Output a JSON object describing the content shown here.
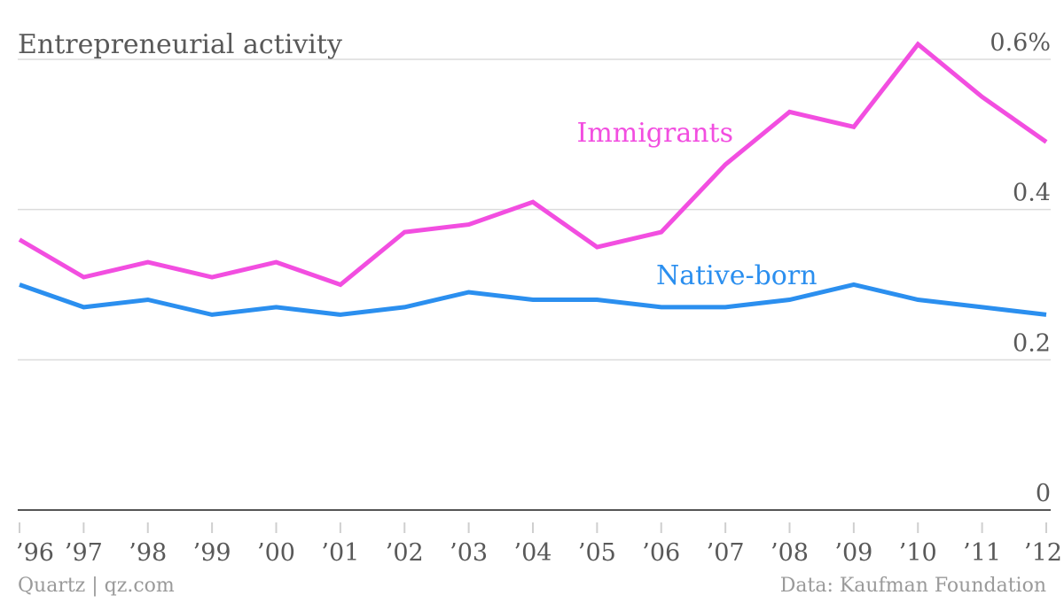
{
  "chart_data": {
    "type": "line",
    "title": "Entrepreneurial activity",
    "x": [
      "’96",
      "’97",
      "’98",
      "’99",
      "’00",
      "’01",
      "’02",
      "’03",
      "’04",
      "’05",
      "’06",
      "’07",
      "’08",
      "’09",
      "’10",
      "’11",
      "’12"
    ],
    "ylim": [
      0,
      0.6
    ],
    "yticks": [
      0,
      0.2,
      0.4,
      0.6
    ],
    "ytick_labels": [
      "0",
      "0.2",
      "0.4",
      "0.6%"
    ],
    "grid": true,
    "series": [
      {
        "name": "Immigrants",
        "color": "#f24ee0",
        "values": [
          0.36,
          0.31,
          0.33,
          0.31,
          0.33,
          0.3,
          0.37,
          0.38,
          0.41,
          0.35,
          0.37,
          0.46,
          0.53,
          0.51,
          0.62,
          0.55,
          0.49
        ]
      },
      {
        "name": "Native-born",
        "color": "#2b8fef",
        "values": [
          0.3,
          0.27,
          0.28,
          0.26,
          0.27,
          0.26,
          0.27,
          0.29,
          0.28,
          0.28,
          0.27,
          0.27,
          0.28,
          0.3,
          0.28,
          0.27,
          0.26
        ]
      }
    ]
  },
  "footer": {
    "source_left": "Quartz | qz.com",
    "source_right": "Data: Kaufman Foundation"
  }
}
